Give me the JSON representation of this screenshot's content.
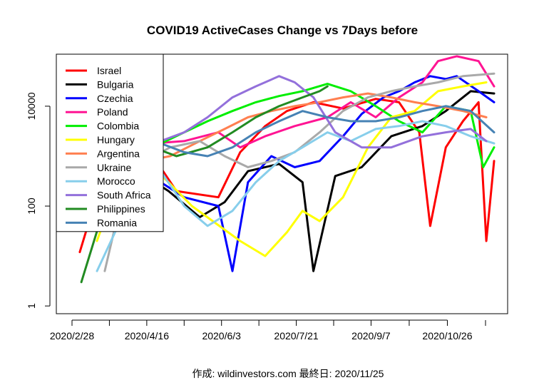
{
  "chart_data": {
    "type": "line",
    "title": "COVID19 ActiveCases Change vs 7Days before",
    "footer": "作成: wildinvestors.com 最終日: 2020/11/25",
    "y_scale": "log",
    "ylim": [
      0.7,
      110000
    ],
    "y_ticks": [
      {
        "value": 1,
        "label": "1"
      },
      {
        "value": 100,
        "label": "100"
      },
      {
        "value": 10000,
        "label": "10000"
      }
    ],
    "x_start": "2020-02-28",
    "x_end": "2020-11-25",
    "x_ticks": [
      {
        "date": "2020-02-28",
        "label": "2020/2/28"
      },
      {
        "date": "2020-04-16",
        "label": "2020/4/16"
      },
      {
        "date": "2020-06-03",
        "label": "2020/6/3"
      },
      {
        "date": "2020-07-21",
        "label": "2020/7/21"
      },
      {
        "date": "2020-09-07",
        "label": "2020/9/7"
      },
      {
        "date": "2020-10-26",
        "label": "2020/10/26"
      }
    ],
    "legend_position": "top-left",
    "series": [
      {
        "name": "Israel",
        "color": "#ff0000",
        "points": [
          [
            "2020-03-04",
            12
          ],
          [
            "2020-03-12",
            80
          ],
          [
            "2020-03-22",
            600
          ],
          [
            "2020-04-01",
            2500
          ],
          [
            "2020-04-10",
            3500
          ],
          [
            "2020-04-20",
            1000
          ],
          [
            "2020-05-05",
            200
          ],
          [
            "2020-06-01",
            150
          ],
          [
            "2020-06-15",
            1200
          ],
          [
            "2020-07-01",
            4000
          ],
          [
            "2020-07-15",
            8000
          ],
          [
            "2020-08-01",
            12000
          ],
          [
            "2020-08-20",
            9000
          ],
          [
            "2020-09-10",
            14000
          ],
          [
            "2020-09-25",
            12000
          ],
          [
            "2020-10-08",
            3000
          ],
          [
            "2020-10-15",
            40
          ],
          [
            "2020-10-25",
            1500
          ],
          [
            "2020-11-05",
            5000
          ],
          [
            "2020-11-15",
            12000
          ],
          [
            "2020-11-20",
            20
          ],
          [
            "2020-11-25",
            800
          ]
        ]
      },
      {
        "name": "Bulgaria",
        "color": "#000000",
        "points": [
          [
            "2020-04-01",
            600
          ],
          [
            "2020-04-15",
            400
          ],
          [
            "2020-04-30",
            200
          ],
          [
            "2020-05-20",
            60
          ],
          [
            "2020-06-05",
            120
          ],
          [
            "2020-06-20",
            500
          ],
          [
            "2020-07-10",
            700
          ],
          [
            "2020-07-25",
            300
          ],
          [
            "2020-08-01",
            5
          ],
          [
            "2020-08-15",
            400
          ],
          [
            "2020-09-01",
            600
          ],
          [
            "2020-09-20",
            2500
          ],
          [
            "2020-10-10",
            4000
          ],
          [
            "2020-10-25",
            8000
          ],
          [
            "2020-11-10",
            20000
          ],
          [
            "2020-11-25",
            18000
          ]
        ]
      },
      {
        "name": "Czechia",
        "color": "#0000ff",
        "points": [
          [
            "2020-03-05",
            40
          ],
          [
            "2020-03-15",
            200
          ],
          [
            "2020-03-25",
            1500
          ],
          [
            "2020-04-10",
            800
          ],
          [
            "2020-04-25",
            300
          ],
          [
            "2020-05-10",
            150
          ],
          [
            "2020-06-01",
            100
          ],
          [
            "2020-06-10",
            5
          ],
          [
            "2020-06-20",
            300
          ],
          [
            "2020-07-05",
            1000
          ],
          [
            "2020-07-20",
            600
          ],
          [
            "2020-08-05",
            800
          ],
          [
            "2020-08-20",
            2500
          ],
          [
            "2020-09-01",
            7000
          ],
          [
            "2020-09-15",
            15000
          ],
          [
            "2020-09-25",
            20000
          ],
          [
            "2020-10-05",
            30000
          ],
          [
            "2020-10-15",
            40000
          ],
          [
            "2020-10-25",
            35000
          ],
          [
            "2020-11-01",
            40000
          ],
          [
            "2020-11-15",
            20000
          ],
          [
            "2020-11-25",
            12000
          ]
        ]
      },
      {
        "name": "Poland",
        "color": "#ff1493",
        "points": [
          [
            "2020-03-10",
            100
          ],
          [
            "2020-03-20",
            800
          ],
          [
            "2020-04-05",
            1800
          ],
          [
            "2020-04-20",
            1800
          ],
          [
            "2020-05-10",
            2000
          ],
          [
            "2020-06-01",
            3000
          ],
          [
            "2020-06-15",
            1500
          ],
          [
            "2020-07-01",
            2500
          ],
          [
            "2020-07-20",
            4000
          ],
          [
            "2020-08-10",
            6000
          ],
          [
            "2020-08-25",
            12000
          ],
          [
            "2020-09-10",
            6000
          ],
          [
            "2020-09-25",
            15000
          ],
          [
            "2020-10-10",
            30000
          ],
          [
            "2020-10-20",
            80000
          ],
          [
            "2020-11-01",
            100000
          ],
          [
            "2020-11-15",
            80000
          ],
          [
            "2020-11-25",
            25000
          ]
        ]
      },
      {
        "name": "Colombia",
        "color": "#00ee00",
        "points": [
          [
            "2020-03-20",
            50
          ],
          [
            "2020-04-05",
            600
          ],
          [
            "2020-04-20",
            1500
          ],
          [
            "2020-05-10",
            3000
          ],
          [
            "2020-05-25",
            5000
          ],
          [
            "2020-06-10",
            8000
          ],
          [
            "2020-06-25",
            12000
          ],
          [
            "2020-07-10",
            16000
          ],
          [
            "2020-07-25",
            20000
          ],
          [
            "2020-08-10",
            28000
          ],
          [
            "2020-08-25",
            20000
          ],
          [
            "2020-09-10",
            10000
          ],
          [
            "2020-09-25",
            5000
          ],
          [
            "2020-10-10",
            3000
          ],
          [
            "2020-10-25",
            10000
          ],
          [
            "2020-11-10",
            8000
          ],
          [
            "2020-11-18",
            600
          ],
          [
            "2020-11-25",
            1500
          ]
        ]
      },
      {
        "name": "Hungary",
        "color": "#ffff00",
        "points": [
          [
            "2020-03-15",
            20
          ],
          [
            "2020-03-30",
            400
          ],
          [
            "2020-04-15",
            800
          ],
          [
            "2020-04-30",
            300
          ],
          [
            "2020-05-15",
            100
          ],
          [
            "2020-06-15",
            20
          ],
          [
            "2020-07-01",
            10
          ],
          [
            "2020-07-15",
            30
          ],
          [
            "2020-07-25",
            80
          ],
          [
            "2020-08-05",
            50
          ],
          [
            "2020-08-20",
            150
          ],
          [
            "2020-09-05",
            1500
          ],
          [
            "2020-09-20",
            6000
          ],
          [
            "2020-10-05",
            8000
          ],
          [
            "2020-10-20",
            20000
          ],
          [
            "2020-11-05",
            25000
          ],
          [
            "2020-11-20",
            30000
          ]
        ]
      },
      {
        "name": "Argentina",
        "color": "#ff7f50",
        "points": [
          [
            "2020-03-15",
            50
          ],
          [
            "2020-03-30",
            400
          ],
          [
            "2020-04-15",
            800
          ],
          [
            "2020-05-01",
            1000
          ],
          [
            "2020-05-20",
            2000
          ],
          [
            "2020-06-05",
            3500
          ],
          [
            "2020-06-20",
            6000
          ],
          [
            "2020-07-05",
            8000
          ],
          [
            "2020-07-20",
            10000
          ],
          [
            "2020-08-05",
            12000
          ],
          [
            "2020-08-20",
            15000
          ],
          [
            "2020-09-05",
            18000
          ],
          [
            "2020-09-20",
            15000
          ],
          [
            "2020-10-05",
            12000
          ],
          [
            "2020-10-20",
            10000
          ],
          [
            "2020-11-05",
            8000
          ],
          [
            "2020-11-20",
            6000
          ]
        ]
      },
      {
        "name": "Ukraine",
        "color": "#a9a9a9",
        "points": [
          [
            "2020-03-20",
            5
          ],
          [
            "2020-04-01",
            200
          ],
          [
            "2020-04-15",
            800
          ],
          [
            "2020-05-01",
            1500
          ],
          [
            "2020-05-20",
            2000
          ],
          [
            "2020-06-05",
            1000
          ],
          [
            "2020-06-20",
            600
          ],
          [
            "2020-07-05",
            800
          ],
          [
            "2020-07-20",
            1200
          ],
          [
            "2020-08-05",
            3000
          ],
          [
            "2020-08-20",
            8000
          ],
          [
            "2020-09-05",
            15000
          ],
          [
            "2020-09-20",
            20000
          ],
          [
            "2020-10-05",
            25000
          ],
          [
            "2020-10-20",
            30000
          ],
          [
            "2020-11-05",
            40000
          ],
          [
            "2020-11-25",
            45000
          ]
        ]
      },
      {
        "name": "Morocco",
        "color": "#87ceeb",
        "points": [
          [
            "2020-03-15",
            5
          ],
          [
            "2020-03-30",
            50
          ],
          [
            "2020-04-10",
            300
          ],
          [
            "2020-04-25",
            500
          ],
          [
            "2020-05-10",
            100
          ],
          [
            "2020-05-25",
            40
          ],
          [
            "2020-06-10",
            80
          ],
          [
            "2020-06-25",
            300
          ],
          [
            "2020-07-10",
            800
          ],
          [
            "2020-07-25",
            1500
          ],
          [
            "2020-08-10",
            3000
          ],
          [
            "2020-08-25",
            2000
          ],
          [
            "2020-09-10",
            3500
          ],
          [
            "2020-09-25",
            4000
          ],
          [
            "2020-10-10",
            5000
          ],
          [
            "2020-10-25",
            4000
          ],
          [
            "2020-11-10",
            2500
          ],
          [
            "2020-11-25",
            1800
          ]
        ]
      },
      {
        "name": "South Africa",
        "color": "#9370db",
        "points": [
          [
            "2020-03-10",
            100
          ],
          [
            "2020-03-25",
            800
          ],
          [
            "2020-04-10",
            1500
          ],
          [
            "2020-04-25",
            2000
          ],
          [
            "2020-05-10",
            3000
          ],
          [
            "2020-05-25",
            6000
          ],
          [
            "2020-06-10",
            15000
          ],
          [
            "2020-06-25",
            25000
          ],
          [
            "2020-07-10",
            40000
          ],
          [
            "2020-07-20",
            30000
          ],
          [
            "2020-08-01",
            15000
          ],
          [
            "2020-08-15",
            3000
          ],
          [
            "2020-09-01",
            1500
          ],
          [
            "2020-09-20",
            1500
          ],
          [
            "2020-10-10",
            2500
          ],
          [
            "2020-10-25",
            3000
          ],
          [
            "2020-11-10",
            3500
          ],
          [
            "2020-11-20",
            2000
          ]
        ]
      },
      {
        "name": "Philippines",
        "color": "#228b22",
        "points": [
          [
            "2020-03-05",
            3
          ],
          [
            "2020-03-20",
            100
          ],
          [
            "2020-04-05",
            800
          ],
          [
            "2020-04-20",
            1500
          ],
          [
            "2020-05-05",
            1000
          ],
          [
            "2020-05-25",
            1500
          ],
          [
            "2020-06-10",
            3000
          ],
          [
            "2020-06-25",
            6000
          ],
          [
            "2020-07-10",
            10000
          ],
          [
            "2020-07-25",
            15000
          ],
          [
            "2020-08-05",
            20000
          ],
          [
            "2020-08-10",
            25000
          ]
        ]
      },
      {
        "name": "Romania",
        "color": "#4682b4",
        "points": [
          [
            "2020-03-10",
            40
          ],
          [
            "2020-03-25",
            400
          ],
          [
            "2020-04-10",
            1500
          ],
          [
            "2020-04-25",
            1800
          ],
          [
            "2020-05-10",
            1200
          ],
          [
            "2020-05-25",
            1000
          ],
          [
            "2020-06-10",
            1500
          ],
          [
            "2020-06-25",
            3000
          ],
          [
            "2020-07-10",
            5000
          ],
          [
            "2020-07-25",
            8000
          ],
          [
            "2020-08-10",
            6000
          ],
          [
            "2020-08-25",
            5000
          ],
          [
            "2020-09-10",
            5000
          ],
          [
            "2020-09-25",
            6000
          ],
          [
            "2020-10-10",
            8000
          ],
          [
            "2020-10-25",
            10000
          ],
          [
            "2020-11-10",
            8000
          ],
          [
            "2020-11-25",
            3000
          ]
        ]
      }
    ]
  }
}
